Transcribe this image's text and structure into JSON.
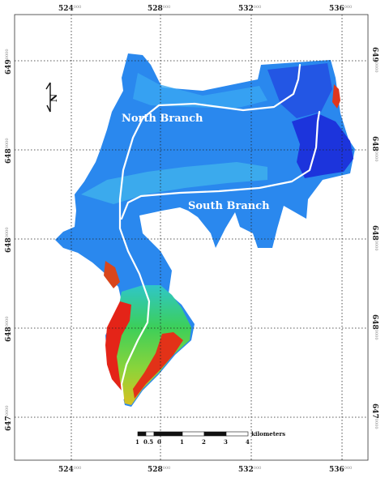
{
  "map": {
    "x_ticks": [
      {
        "main": "524",
        "sup": "000"
      },
      {
        "main": "528",
        "sup": "000"
      },
      {
        "main": "532",
        "sup": "000"
      },
      {
        "main": "536",
        "sup": "000"
      }
    ],
    "y_ticks": [
      {
        "main": "649",
        "sup": "0000"
      },
      {
        "main": "648",
        "sup": "0000"
      },
      {
        "main": "648",
        "sup": "0000"
      },
      {
        "main": "648",
        "sup": "0000"
      },
      {
        "main": "647",
        "sup": "0000"
      }
    ],
    "labels": {
      "north_branch": "North Branch",
      "south_branch": "South Branch"
    },
    "north_arrow": "N",
    "scale_bar": {
      "ticks": [
        "1",
        "0.5",
        "0",
        "1",
        "2",
        "3",
        "4"
      ],
      "unit": "kilometers"
    },
    "colors": {
      "deep": "#1a2fe0",
      "mid": "#1f8cf0",
      "shallow": "#2ad0b0",
      "green": "#3ec83c",
      "red": "#e82020"
    }
  }
}
